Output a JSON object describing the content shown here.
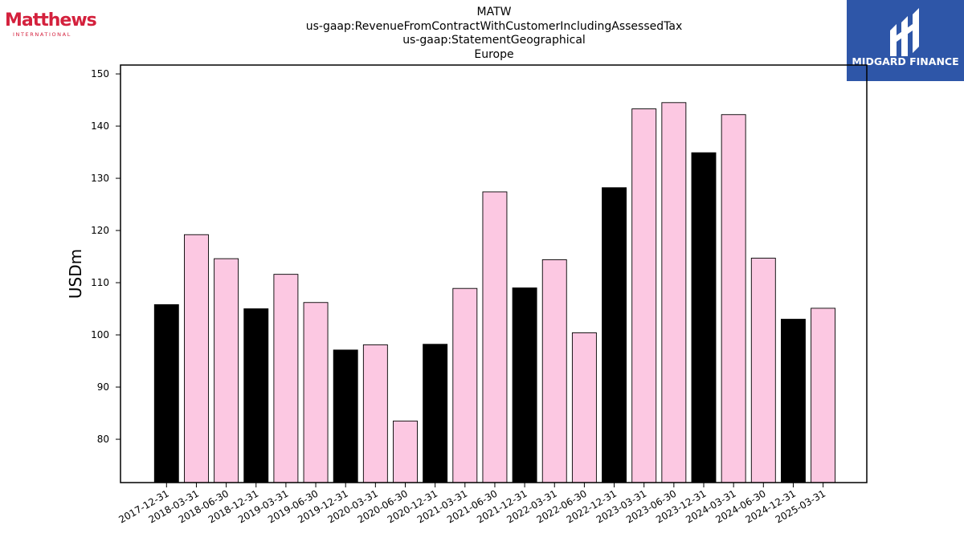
{
  "header": {
    "title_lines": [
      "MATW",
      "us-gaap:RevenueFromContractWithCustomerIncludingAssessedTax",
      "us-gaap:StatementGeographical",
      "Europe"
    ]
  },
  "logos": {
    "left_brand": "Matthews",
    "left_sub": "INTERNATIONAL",
    "right_brand": "MIDGARD FINANCE"
  },
  "colors": {
    "annual_bar": "#000000",
    "quarter_bar": "#fcc8e2",
    "logo_red": "#d4213d",
    "logo_blue": "#2e56a8"
  },
  "chart_data": {
    "type": "bar",
    "title": "MATW us-gaap:RevenueFromContractWithCustomerIncludingAssessedTax us-gaap:StatementGeographical Europe",
    "xlabel": "",
    "ylabel": "USDm",
    "ylim": [
      71.7,
      151.7
    ],
    "yticks": [
      80,
      90,
      100,
      110,
      120,
      130,
      140,
      150
    ],
    "grid": false,
    "categories": [
      "2017-12-31",
      "2018-03-31",
      "2018-06-30",
      "2018-12-31",
      "2019-03-31",
      "2019-06-30",
      "2019-12-31",
      "2020-03-31",
      "2020-06-30",
      "2020-12-31",
      "2021-03-31",
      "2021-06-30",
      "2021-12-31",
      "2022-03-31",
      "2022-06-30",
      "2022-12-31",
      "2023-03-31",
      "2023-06-30",
      "2023-12-31",
      "2024-03-31",
      "2024-06-30",
      "2024-12-31",
      "2025-03-31"
    ],
    "values": [
      105.8,
      119.2,
      114.6,
      105.0,
      111.6,
      106.2,
      97.1,
      98.1,
      83.5,
      98.2,
      108.9,
      127.4,
      109.0,
      114.4,
      100.4,
      128.2,
      143.3,
      144.5,
      134.9,
      142.2,
      114.7,
      103.0,
      105.1
    ],
    "series_fill": [
      "annual",
      "quarter",
      "quarter",
      "annual",
      "quarter",
      "quarter",
      "annual",
      "quarter",
      "quarter",
      "annual",
      "quarter",
      "quarter",
      "annual",
      "quarter",
      "quarter",
      "annual",
      "quarter",
      "quarter",
      "annual",
      "quarter",
      "quarter",
      "annual",
      "quarter"
    ]
  }
}
